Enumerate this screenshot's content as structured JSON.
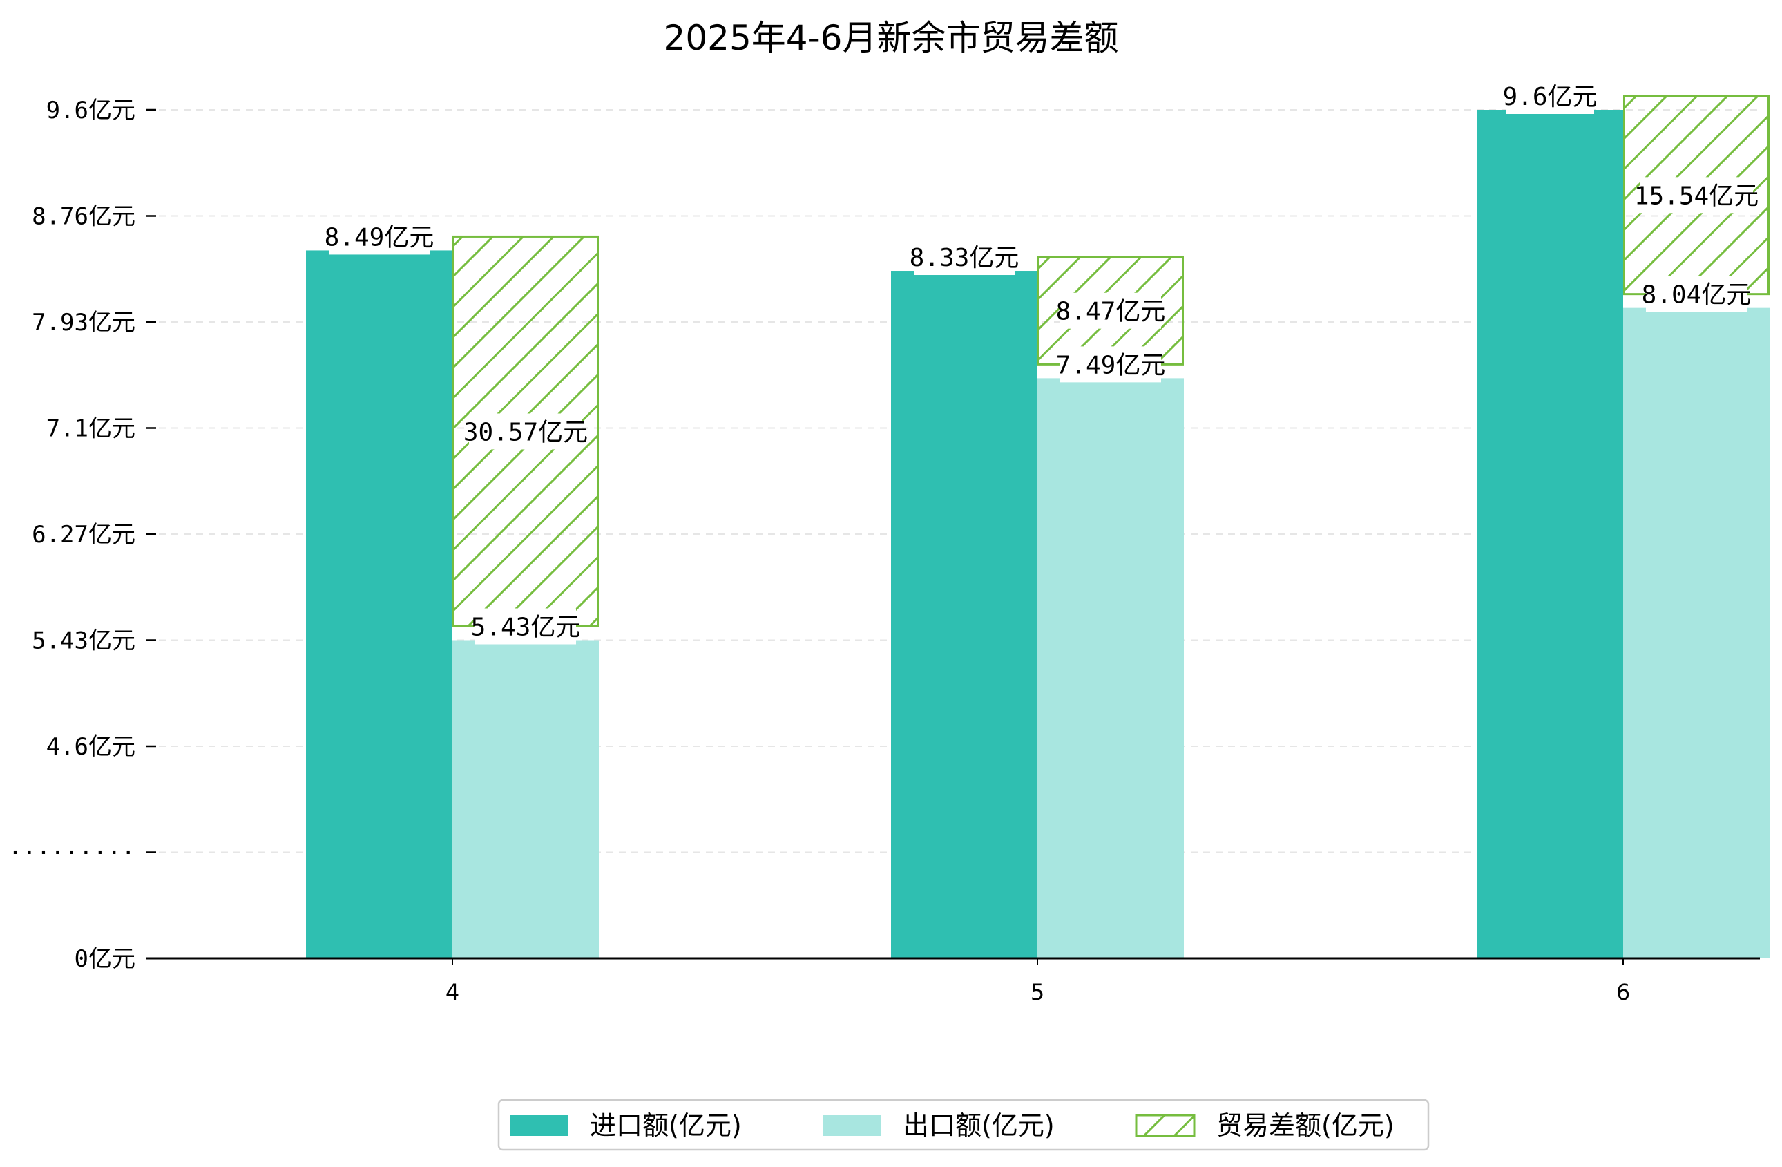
{
  "chart_data": {
    "type": "bar",
    "title": "2025年4-6月新余市贸易差额",
    "categories": [
      "4",
      "5",
      "6"
    ],
    "y_tick_labels": [
      "0亿元",
      "·········",
      "4.6亿元",
      "5.43亿元",
      "6.27亿元",
      "7.1亿元",
      "7.93亿元",
      "8.76亿元",
      "9.6亿元"
    ],
    "y_tick_values": [
      0,
      null,
      4.6,
      5.43,
      6.27,
      7.1,
      7.93,
      8.76,
      9.6
    ],
    "axis_break": true,
    "ylim": [
      0,
      9.6
    ],
    "grid": true,
    "legend_position": "bottom-center",
    "series": [
      {
        "name": "进口额(亿元)",
        "values": [
          8.49,
          8.33,
          9.6
        ],
        "labels": [
          "8.49亿元",
          "8.33亿元",
          "9.6亿元"
        ],
        "color": "#2fbfb1"
      },
      {
        "name": "出口额(亿元)",
        "values": [
          5.43,
          7.49,
          8.04
        ],
        "labels": [
          "5.43亿元",
          "7.49亿元",
          "8.04亿元"
        ],
        "color": "#a8e6e0"
      },
      {
        "name": "贸易差额(亿元)",
        "values": [
          30.57,
          8.47,
          15.54
        ],
        "labels": [
          "30.57亿元",
          "8.47亿元",
          "15.54亿元"
        ],
        "color": "#76bd3f"
      }
    ]
  }
}
